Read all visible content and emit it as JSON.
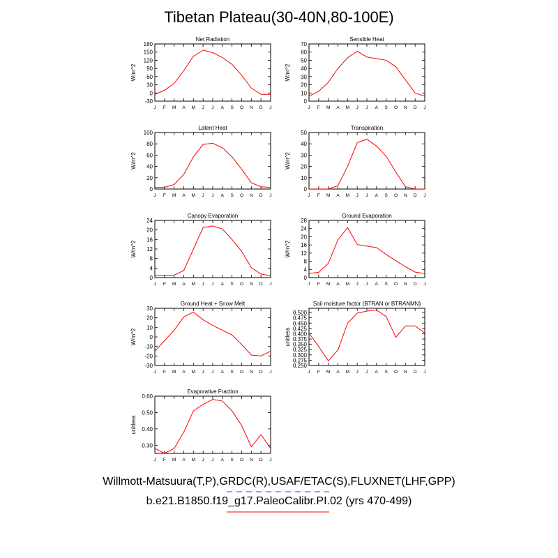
{
  "title": "Tibetan Plateau(30-40N,80-100E)",
  "footer": {
    "observations": "Willmott-Matsuura(T,P),GRDC(R),USAF/ETAC(S),FLUXNET(LHF,GPP)",
    "model_run": "b.e21.B1850.f19_g17.PaleoCalibr.PI.02 (yrs 470-499)"
  },
  "colors": {
    "model_line": "#ff0000",
    "obs_legend_line": "#3a3aff",
    "axes": "#000000"
  },
  "chart_data": [
    {
      "type": "line",
      "title": "Net Radiation",
      "ylabel": "W/m^2",
      "ylim": [
        -30,
        180
      ],
      "yticks": [
        "-30",
        "0",
        "30",
        "60",
        "90",
        "120",
        "150",
        "180"
      ],
      "ytick_values": [
        -30,
        0,
        30,
        60,
        90,
        120,
        150,
        180
      ],
      "x": [
        "J",
        "F",
        "M",
        "A",
        "M",
        "J",
        "J",
        "A",
        "S",
        "O",
        "N",
        "D",
        "J"
      ],
      "values": [
        -5,
        10,
        35,
        82,
        135,
        157,
        148,
        130,
        105,
        65,
        18,
        -5,
        -5
      ]
    },
    {
      "type": "line",
      "title": "Sensible Heat",
      "ylabel": "W/m^2",
      "ylim": [
        0,
        70
      ],
      "yticks": [
        "0",
        "10",
        "20",
        "30",
        "40",
        "50",
        "60",
        "70"
      ],
      "ytick_values": [
        0,
        10,
        20,
        30,
        40,
        50,
        60,
        70
      ],
      "x": [
        "J",
        "F",
        "M",
        "A",
        "M",
        "J",
        "J",
        "A",
        "S",
        "O",
        "N",
        "D",
        "J"
      ],
      "values": [
        6,
        12,
        23,
        40,
        53,
        61,
        54,
        52,
        50,
        42,
        26,
        10,
        6
      ]
    },
    {
      "type": "line",
      "title": "Latent Heat",
      "ylabel": "W/m^2",
      "ylim": [
        0,
        100
      ],
      "yticks": [
        "0",
        "20",
        "40",
        "60",
        "80",
        "100"
      ],
      "ytick_values": [
        0,
        20,
        40,
        60,
        80,
        100
      ],
      "x": [
        "J",
        "F",
        "M",
        "A",
        "M",
        "J",
        "J",
        "A",
        "S",
        "O",
        "N",
        "D",
        "J"
      ],
      "values": [
        3,
        3,
        8,
        26,
        57,
        79,
        81,
        73,
        57,
        35,
        11,
        4,
        3
      ]
    },
    {
      "type": "line",
      "title": "Transpiration",
      "ylabel": "W/m^2",
      "ylim": [
        0,
        50
      ],
      "yticks": [
        "0",
        "10",
        "20",
        "30",
        "40",
        "50"
      ],
      "ytick_values": [
        0,
        10,
        20,
        30,
        40,
        50
      ],
      "x": [
        "J",
        "F",
        "M",
        "A",
        "M",
        "J",
        "J",
        "A",
        "S",
        "O",
        "N",
        "D",
        "J"
      ],
      "values": [
        0,
        0,
        0,
        3,
        20,
        41,
        44,
        38,
        29,
        15,
        2,
        0,
        0
      ]
    },
    {
      "type": "line",
      "title": "Canopy Evaporation",
      "ylabel": "W/m^2",
      "ylim": [
        0,
        24
      ],
      "yticks": [
        "0",
        "4",
        "8",
        "12",
        "16",
        "20",
        "24"
      ],
      "ytick_values": [
        0,
        4,
        8,
        12,
        16,
        20,
        24
      ],
      "x": [
        "J",
        "F",
        "M",
        "A",
        "M",
        "J",
        "J",
        "A",
        "S",
        "O",
        "N",
        "D",
        "J"
      ],
      "values": [
        0.8,
        0.8,
        1.0,
        3.0,
        12,
        21,
        21.7,
        20.4,
        16,
        11,
        4.2,
        1.5,
        0.8
      ]
    },
    {
      "type": "line",
      "title": "Ground Evaporation",
      "ylabel": "W/m^2",
      "ylim": [
        0,
        28
      ],
      "yticks": [
        "0",
        "4",
        "8",
        "12",
        "16",
        "20",
        "24",
        "28"
      ],
      "ytick_values": [
        0,
        4,
        8,
        12,
        16,
        20,
        24,
        28
      ],
      "x": [
        "J",
        "F",
        "M",
        "A",
        "M",
        "J",
        "J",
        "A",
        "S",
        "O",
        "N",
        "D",
        "J"
      ],
      "values": [
        2.0,
        2.6,
        7.0,
        18.5,
        24.5,
        16.2,
        15.4,
        14.7,
        11.3,
        8.3,
        5.3,
        2.7,
        2.0
      ]
    },
    {
      "type": "line",
      "title": "Ground Heat + Snow Melt",
      "ylabel": "W/m^2",
      "ylim": [
        -30,
        30
      ],
      "yticks": [
        "-30",
        "-20",
        "-10",
        "0",
        "10",
        "20",
        "30"
      ],
      "ytick_values": [
        -30,
        -20,
        -10,
        0,
        10,
        20,
        30
      ],
      "x": [
        "J",
        "F",
        "M",
        "A",
        "M",
        "J",
        "J",
        "A",
        "S",
        "O",
        "N",
        "D",
        "J"
      ],
      "values": [
        -15,
        -4,
        7,
        21,
        26,
        18,
        12,
        7,
        2,
        -8,
        -19,
        -20,
        -15
      ]
    },
    {
      "type": "line",
      "title": "Soil moisture factor (BTRAN or BTRANMN)",
      "ylabel": "unitless",
      "ylim": [
        0.25,
        0.52
      ],
      "yticks": [
        "0.250",
        "0.275",
        "0.300",
        "0.325",
        "0.350",
        "0.375",
        "0.400",
        "0.425",
        "0.450",
        "0.475",
        "0.500"
      ],
      "ytick_values": [
        0.25,
        0.275,
        0.3,
        0.325,
        0.35,
        0.375,
        0.4,
        0.425,
        0.45,
        0.475,
        0.5
      ],
      "x": [
        "J",
        "F",
        "M",
        "A",
        "M",
        "J",
        "J",
        "A",
        "S",
        "O",
        "N",
        "D",
        "J"
      ],
      "values": [
        0.403,
        0.34,
        0.272,
        0.323,
        0.45,
        0.497,
        0.507,
        0.512,
        0.481,
        0.383,
        0.437,
        0.437,
        0.403
      ]
    },
    {
      "type": "line",
      "title": "Evaporative Fraction",
      "ylabel": "unitless",
      "ylim": [
        0.25,
        0.6
      ],
      "yticks": [
        "0.30",
        "0.40",
        "0.50",
        "0.60"
      ],
      "ytick_values": [
        0.3,
        0.4,
        0.5,
        0.6
      ],
      "x": [
        "J",
        "F",
        "M",
        "A",
        "M",
        "J",
        "J",
        "A",
        "S",
        "O",
        "N",
        "D",
        "J"
      ],
      "values": [
        0.28,
        0.25,
        0.28,
        0.38,
        0.51,
        0.55,
        0.58,
        0.57,
        0.51,
        0.42,
        0.29,
        0.365,
        0.28
      ]
    }
  ]
}
